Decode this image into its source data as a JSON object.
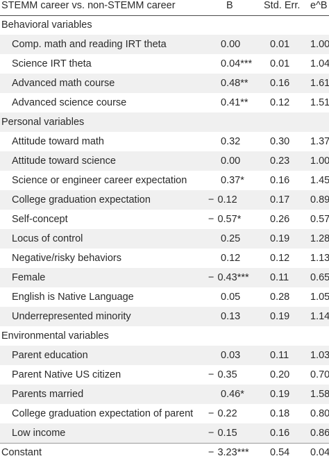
{
  "header": {
    "label": "STEMM career vs. non-STEMM career",
    "col_b": "B",
    "col_se": "Std. Err.",
    "col_eb": "e^B"
  },
  "rows": [
    {
      "type": "section",
      "label": "Behavioral variables"
    },
    {
      "type": "item",
      "label": "Comp. math and reading IRT theta",
      "sign": "",
      "b": "0.00",
      "stars": "",
      "se": "0.01",
      "eb": "1.00"
    },
    {
      "type": "item",
      "label": "Science IRT theta",
      "sign": "",
      "b": "0.04",
      "stars": "***",
      "se": "0.01",
      "eb": "1.04"
    },
    {
      "type": "item",
      "label": "Advanced math course",
      "sign": "",
      "b": "0.48",
      "stars": "**",
      "se": "0.16",
      "eb": "1.61"
    },
    {
      "type": "item",
      "label": "Advanced science course",
      "sign": "",
      "b": "0.41",
      "stars": "**",
      "se": "0.12",
      "eb": "1.51"
    },
    {
      "type": "section",
      "label": "Personal variables"
    },
    {
      "type": "item",
      "label": "Attitude toward math",
      "sign": "",
      "b": "0.32",
      "stars": "",
      "se": "0.30",
      "eb": "1.37"
    },
    {
      "type": "item",
      "label": "Attitude toward science",
      "sign": "",
      "b": "0.00",
      "stars": "",
      "se": "0.23",
      "eb": "1.00"
    },
    {
      "type": "item",
      "label": "Science or engineer career expectation",
      "sign": "",
      "b": "0.37",
      "stars": "*",
      "se": "0.16",
      "eb": "1.45"
    },
    {
      "type": "item",
      "label": "College graduation expectation",
      "sign": "−",
      "b": "0.12",
      "stars": "",
      "se": "0.17",
      "eb": "0.89"
    },
    {
      "type": "item",
      "label": "Self-concept",
      "sign": "−",
      "b": "0.57",
      "stars": "*",
      "se": "0.26",
      "eb": "0.57"
    },
    {
      "type": "item",
      "label": "Locus of control",
      "sign": "",
      "b": "0.25",
      "stars": "",
      "se": "0.19",
      "eb": "1.28"
    },
    {
      "type": "item",
      "label": "Negative/risky behaviors",
      "sign": "",
      "b": "0.12",
      "stars": "",
      "se": "0.12",
      "eb": "1.13"
    },
    {
      "type": "item",
      "label": "Female",
      "sign": "−",
      "b": "0.43",
      "stars": "***",
      "se": "0.11",
      "eb": "0.65"
    },
    {
      "type": "item",
      "label": "English is Native Language",
      "sign": "",
      "b": "0.05",
      "stars": "",
      "se": "0.28",
      "eb": "1.05"
    },
    {
      "type": "item",
      "label": "Underrepresented minority",
      "sign": "",
      "b": "0.13",
      "stars": "",
      "se": "0.19",
      "eb": "1.14"
    },
    {
      "type": "section",
      "label": "Environmental variables"
    },
    {
      "type": "item",
      "label": "Parent education",
      "sign": "",
      "b": "0.03",
      "stars": "",
      "se": "0.11",
      "eb": "1.03"
    },
    {
      "type": "item",
      "label": "Parent Native US citizen",
      "sign": "−",
      "b": "0.35",
      "stars": "",
      "se": "0.20",
      "eb": "0.70"
    },
    {
      "type": "item",
      "label": "Parents married",
      "sign": "",
      "b": "0.46",
      "stars": "*",
      "se": "0.19",
      "eb": "1.58"
    },
    {
      "type": "item",
      "label": "College graduation expectation of parent",
      "sign": "−",
      "b": "0.22",
      "stars": "",
      "se": "0.18",
      "eb": "0.80"
    },
    {
      "type": "item",
      "label": "Low income",
      "sign": "−",
      "b": "0.15",
      "stars": "",
      "se": "0.16",
      "eb": "0.86"
    },
    {
      "type": "constant",
      "label": "Constant",
      "sign": "−",
      "b": "3.23",
      "stars": "***",
      "se": "0.54",
      "eb": "0.04"
    }
  ]
}
